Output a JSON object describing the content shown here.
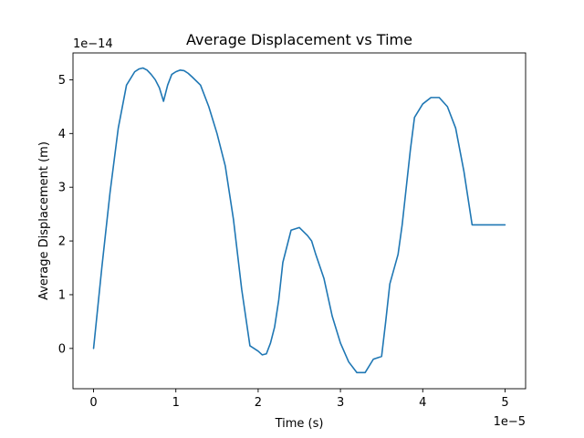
{
  "chart_data": {
    "type": "line",
    "title": "Average Displacement vs Time",
    "xlabel": "Time (s)",
    "ylabel": "Average Displacement (m)",
    "x_offset_label": "1e−5",
    "y_offset_label": "1e−14",
    "xlim": [
      -0.25,
      5.25
    ],
    "ylim": [
      -0.75,
      5.5
    ],
    "x_ticks": [
      0,
      1,
      2,
      3,
      4,
      5
    ],
    "x_tick_labels": [
      "0",
      "1",
      "2",
      "3",
      "4",
      "5"
    ],
    "y_ticks": [
      0,
      1,
      2,
      3,
      4,
      5
    ],
    "y_tick_labels": [
      "0",
      "1",
      "2",
      "3",
      "4",
      "5"
    ],
    "grid": false,
    "series": [
      {
        "color": "#1f77b4",
        "x": [
          0,
          0.1,
          0.2,
          0.3,
          0.4,
          0.5,
          0.55,
          0.6,
          0.65,
          0.7,
          0.75,
          0.8,
          0.85,
          0.9,
          0.95,
          1.0,
          1.05,
          1.1,
          1.15,
          1.2,
          1.3,
          1.4,
          1.5,
          1.6,
          1.7,
          1.8,
          1.9,
          2.0,
          2.05,
          2.1,
          2.15,
          2.2,
          2.25,
          2.3,
          2.4,
          2.5,
          2.6,
          2.65,
          2.7,
          2.8,
          2.9,
          3.0,
          3.1,
          3.2,
          3.3,
          3.4,
          3.5,
          3.55,
          3.6,
          3.7,
          3.75,
          3.8,
          3.85,
          3.9,
          4.0,
          4.1,
          4.2,
          4.3,
          4.4,
          4.5,
          4.6,
          4.65,
          4.7,
          4.8,
          4.9,
          5.0
        ],
        "y": [
          0,
          1.5,
          2.9,
          4.1,
          4.9,
          5.15,
          5.2,
          5.22,
          5.18,
          5.1,
          5.0,
          4.85,
          4.6,
          4.9,
          5.1,
          5.15,
          5.18,
          5.17,
          5.12,
          5.05,
          4.9,
          4.5,
          4.0,
          3.4,
          2.4,
          1.1,
          0.05,
          -0.05,
          -0.12,
          -0.1,
          0.1,
          0.4,
          0.9,
          1.6,
          2.2,
          2.25,
          2.1,
          2.0,
          1.75,
          1.3,
          0.6,
          0.1,
          -0.25,
          -0.45,
          -0.45,
          -0.2,
          -0.15,
          0.5,
          1.2,
          1.75,
          2.3,
          3.0,
          3.7,
          4.3,
          4.55,
          4.67,
          4.67,
          4.5,
          4.1,
          3.3,
          2.3,
          2.3,
          2.3,
          2.3,
          2.3,
          2.3
        ]
      }
    ]
  }
}
